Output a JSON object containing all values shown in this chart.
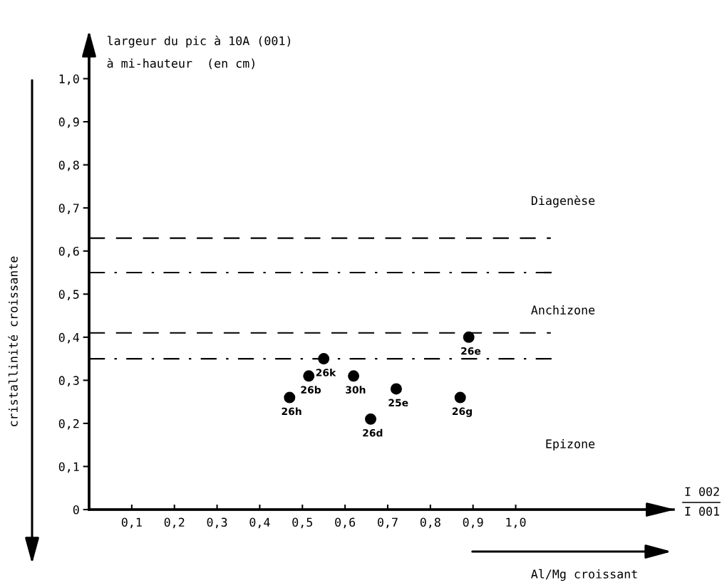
{
  "chart_data": {
    "type": "scatter",
    "xlabel": "I 002\nI 001",
    "ylabel": "largeur du pic à 10A (001)\nà mi-hauteur  (en cm)",
    "x": [
      0.47,
      0.515,
      0.55,
      0.62,
      0.66,
      0.72,
      0.87,
      0.89
    ],
    "series": [
      {
        "color": "#000000",
        "values": [
          0.26,
          0.31,
          0.35,
          0.31,
          0.21,
          0.28,
          0.26,
          0.4
        ]
      }
    ],
    "marker": "circle",
    "grid": false,
    "legend": false,
    "xlim": [
      0,
      1.37
    ],
    "ylim": [
      0,
      1.1
    ],
    "xticks": [
      {
        "value": 0.1,
        "label": "0,1"
      },
      {
        "value": 0.2,
        "label": "0,2"
      },
      {
        "value": 0.3,
        "label": "0,3"
      },
      {
        "value": 0.4,
        "label": "0,4"
      },
      {
        "value": 0.5,
        "label": "0,5"
      },
      {
        "value": 0.6,
        "label": "0,6"
      },
      {
        "value": 0.7,
        "label": "0,7"
      },
      {
        "value": 0.8,
        "label": "0,8"
      },
      {
        "value": 0.9,
        "label": "0,9"
      },
      {
        "value": 1.0,
        "label": "1,0"
      }
    ],
    "yticks": [
      0,
      {
        "value": 0.1,
        "label": "0,1"
      },
      {
        "value": 0.2,
        "label": "0,2"
      },
      {
        "value": 0.3,
        "label": "0,3"
      },
      {
        "value": 0.4,
        "label": "0,4"
      },
      {
        "value": 0.5,
        "label": "0,5"
      },
      {
        "value": 0.6,
        "label": "0,6"
      },
      {
        "value": 0.7,
        "label": "0,7"
      },
      {
        "value": 0.8,
        "label": "0,8"
      },
      {
        "value": 0.9,
        "label": "0,9"
      },
      {
        "value": 1.0,
        "label": "1,0"
      }
    ],
    "ref_lines": [
      {
        "axis": "y",
        "value": 0.63,
        "line_style": "dashed",
        "color": "#000000"
      },
      {
        "axis": "y",
        "value": 0.55,
        "line_style": "dashdot",
        "color": "#000000"
      },
      {
        "axis": "y",
        "value": 0.41,
        "line_style": "dashed",
        "color": "#000000"
      },
      {
        "axis": "y",
        "value": 0.35,
        "line_style": "dashdot",
        "color": "#000000"
      }
    ],
    "annotations": [
      {
        "text": "26h",
        "x": 0.47,
        "y": 0.26
      },
      {
        "text": "26b",
        "x": 0.515,
        "y": 0.31
      },
      {
        "text": "26k",
        "x": 0.55,
        "y": 0.35
      },
      {
        "text": "30h",
        "x": 0.62,
        "y": 0.31
      },
      {
        "text": "26d",
        "x": 0.66,
        "y": 0.21
      },
      {
        "text": "25e",
        "x": 0.72,
        "y": 0.28
      },
      {
        "text": "26g",
        "x": 0.87,
        "y": 0.26
      },
      {
        "text": "26e",
        "x": 0.89,
        "y": 0.4
      },
      "Diagenèse",
      "Anchizone",
      "Epizone",
      "cristallinité croissante",
      "Al/Mg croissant"
    ]
  }
}
